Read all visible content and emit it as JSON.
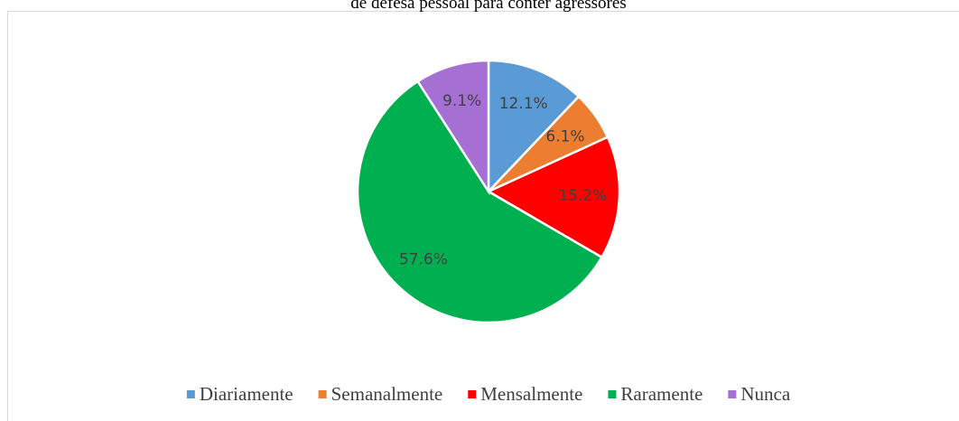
{
  "chart_data": {
    "type": "pie",
    "title": "de defesa pessoal para conter agressores",
    "categories": [
      "Diariamente",
      "Semanalmente",
      "Mensalmente",
      "Raramente",
      "Nunca"
    ],
    "values": [
      12.1,
      6.1,
      15.2,
      57.6,
      9.1
    ],
    "value_labels": [
      "12.1%",
      "6.1%",
      "15.2%",
      "57.6%",
      "9.1%"
    ],
    "colors": [
      "#5b9bd5",
      "#ed7d31",
      "#ff0000",
      "#00b050",
      "#a66fd4"
    ],
    "legend": "bottom"
  }
}
